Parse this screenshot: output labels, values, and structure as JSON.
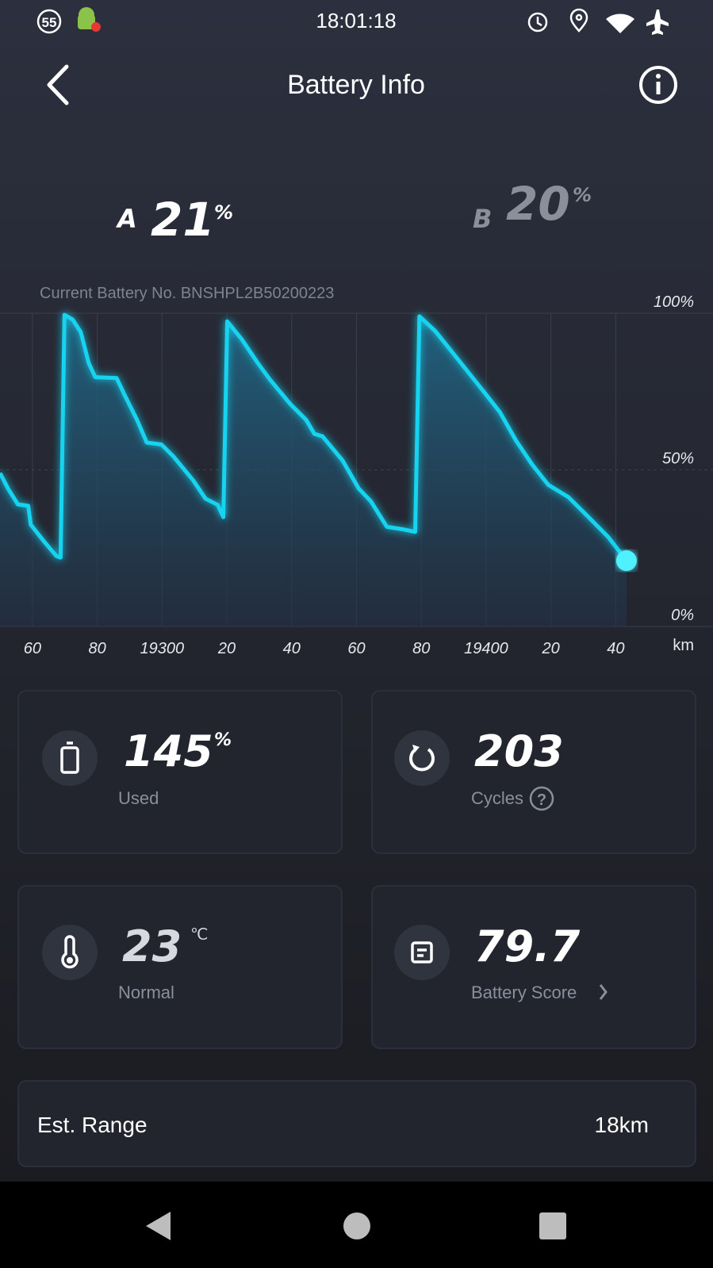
{
  "status_bar": {
    "notification_count": "55",
    "time": "18:01:18"
  },
  "header": {
    "title": "Battery Info"
  },
  "batteries": [
    {
      "label": "A",
      "value": "21",
      "unit": "%"
    },
    {
      "label": "B",
      "value": "20",
      "unit": "%"
    }
  ],
  "battery_no": "Current Battery No. BNSHPL2B50200223",
  "chart_data": {
    "type": "line",
    "x": [
      19250,
      19252.5,
      19255.5,
      19258.7,
      19259.5,
      19263.7,
      19267.4,
      19268.7,
      19269.9,
      19272.4,
      19274.9,
      19277.4,
      19279.4,
      19286,
      19288.6,
      19292.3,
      19295.3,
      19299.8,
      19303.5,
      19309.7,
      19313.4,
      19317.2,
      19318.9,
      19320.1,
      19324.6,
      19329.6,
      19333.3,
      19339.6,
      19344.5,
      19347,
      19349.5,
      19355.7,
      19360.7,
      19364.4,
      19369.4,
      19374.4,
      19378.1,
      19379.4,
      19384.3,
      19389.3,
      19394.3,
      19399.3,
      19404.2,
      19409.2,
      19414.2,
      19419.2,
      19425.4,
      19431.6,
      19437.8,
      19443.3
    ],
    "series": [
      {
        "color": "#19d3f0",
        "values": [
          49,
          44,
          39,
          38.5,
          32.5,
          27,
          22.5,
          22,
          99.5,
          98,
          94,
          84,
          79.6,
          79.3,
          73.6,
          65.9,
          58.7,
          58.1,
          54.3,
          46.5,
          40.8,
          38.8,
          34.9,
          97.4,
          91.7,
          84,
          78.8,
          71,
          65.9,
          61.5,
          60.7,
          53,
          44,
          40,
          31.8,
          31,
          30.2,
          99,
          94.3,
          87.9,
          81.4,
          74.9,
          68.5,
          59.4,
          51.7,
          45.2,
          41.3,
          34.9,
          28.4,
          21
        ]
      }
    ],
    "xlim": [
      19250,
      19470
    ],
    "ylim": [
      0,
      100
    ],
    "xticks": [
      {
        "value": 19260,
        "label": "60"
      },
      {
        "value": 19280,
        "label": "80"
      },
      19300,
      {
        "value": 19320,
        "label": "20"
      },
      {
        "value": 19340,
        "label": "40"
      },
      {
        "value": 19360,
        "label": "60"
      },
      {
        "value": 19380,
        "label": "80"
      },
      19400,
      {
        "value": 19420,
        "label": "20"
      },
      {
        "value": 19440,
        "label": "40"
      }
    ],
    "yticks": [
      {
        "value": 0,
        "label": "0%"
      },
      {
        "value": 50,
        "label": "50%"
      },
      {
        "value": 100,
        "label": "100%"
      }
    ],
    "xlabel": "km",
    "grid": true
  },
  "cards": [
    {
      "value": "145",
      "unit": "%",
      "label": "Used"
    },
    {
      "value": "203",
      "label": "Cycles"
    },
    {
      "value": "23",
      "unit": "℃",
      "label": "Normal"
    },
    {
      "value": "79.7",
      "label": "Battery Score"
    }
  ],
  "range": {
    "label": "Est. Range",
    "value": "18km"
  }
}
